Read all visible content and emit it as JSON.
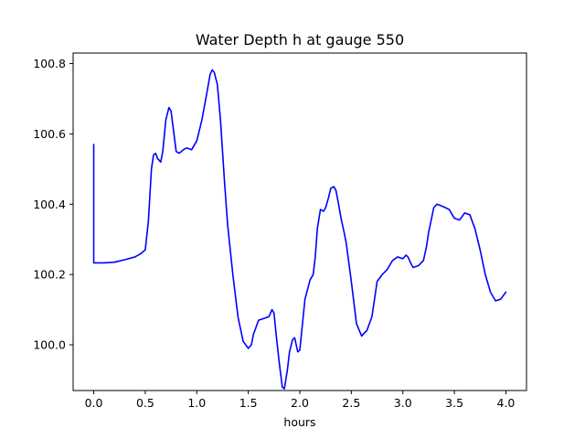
{
  "chart_data": {
    "type": "line",
    "title": "Water Depth h at gauge 550",
    "xlabel": "hours",
    "ylabel": "",
    "xlim": [
      -0.2,
      4.2
    ],
    "ylim": [
      99.87,
      100.83
    ],
    "grid": false,
    "x_ticks": [
      0.0,
      0.5,
      1.0,
      1.5,
      2.0,
      2.5,
      3.0,
      3.5,
      4.0
    ],
    "x_tick_labels": [
      "0.0",
      "0.5",
      "1.0",
      "1.5",
      "2.0",
      "2.5",
      "3.0",
      "3.5",
      "4.0"
    ],
    "y_ticks": [
      100.0,
      100.2,
      100.4,
      100.6,
      100.8
    ],
    "y_tick_labels": [
      "100.0",
      "100.2",
      "100.4",
      "100.6",
      "100.8"
    ],
    "series": [
      {
        "color": "#0000ff",
        "x": [
          0.0,
          0.0,
          0.0,
          0.1,
          0.2,
          0.3,
          0.4,
          0.45,
          0.5,
          0.53,
          0.56,
          0.58,
          0.6,
          0.62,
          0.65,
          0.67,
          0.7,
          0.73,
          0.75,
          0.77,
          0.8,
          0.83,
          0.87,
          0.9,
          0.95,
          1.0,
          1.05,
          1.1,
          1.13,
          1.15,
          1.17,
          1.2,
          1.23,
          1.27,
          1.3,
          1.35,
          1.4,
          1.45,
          1.5,
          1.53,
          1.55,
          1.6,
          1.65,
          1.7,
          1.73,
          1.75,
          1.77,
          1.8,
          1.83,
          1.85,
          1.88,
          1.9,
          1.93,
          1.95,
          1.98,
          2.0,
          2.05,
          2.1,
          2.13,
          2.15,
          2.17,
          2.2,
          2.23,
          2.25,
          2.28,
          2.3,
          2.33,
          2.35,
          2.37,
          2.4,
          2.43,
          2.45,
          2.5,
          2.55,
          2.6,
          2.63,
          2.65,
          2.7,
          2.75,
          2.8,
          2.85,
          2.9,
          2.95,
          3.0,
          3.03,
          3.05,
          3.08,
          3.1,
          3.15,
          3.2,
          3.23,
          3.25,
          3.3,
          3.33,
          3.35,
          3.4,
          3.45,
          3.5,
          3.55,
          3.6,
          3.65,
          3.7,
          3.75,
          3.8,
          3.85,
          3.9,
          3.95,
          4.0
        ],
        "values": [
          100.57,
          100.35,
          100.233,
          100.233,
          100.235,
          100.242,
          100.25,
          100.258,
          100.27,
          100.35,
          100.5,
          100.54,
          100.545,
          100.53,
          100.52,
          100.55,
          100.64,
          100.675,
          100.665,
          100.62,
          100.55,
          100.545,
          100.555,
          100.56,
          100.555,
          100.58,
          100.64,
          100.72,
          100.77,
          100.782,
          100.775,
          100.74,
          100.64,
          100.46,
          100.34,
          100.2,
          100.08,
          100.01,
          99.99,
          100.0,
          100.03,
          100.07,
          100.075,
          100.08,
          100.1,
          100.09,
          100.03,
          99.95,
          99.88,
          99.875,
          99.93,
          99.98,
          100.015,
          100.02,
          99.98,
          99.985,
          100.13,
          100.185,
          100.2,
          100.25,
          100.33,
          100.385,
          100.38,
          100.39,
          100.42,
          100.445,
          100.45,
          100.44,
          100.41,
          100.36,
          100.32,
          100.29,
          100.18,
          100.06,
          100.025,
          100.035,
          100.04,
          100.08,
          100.18,
          100.2,
          100.215,
          100.24,
          100.25,
          100.245,
          100.255,
          100.25,
          100.23,
          100.22,
          100.225,
          100.24,
          100.28,
          100.32,
          100.39,
          100.4,
          100.398,
          100.392,
          100.385,
          100.36,
          100.355,
          100.375,
          100.37,
          100.33,
          100.27,
          100.2,
          100.15,
          100.125,
          100.13,
          100.15
        ]
      }
    ]
  }
}
